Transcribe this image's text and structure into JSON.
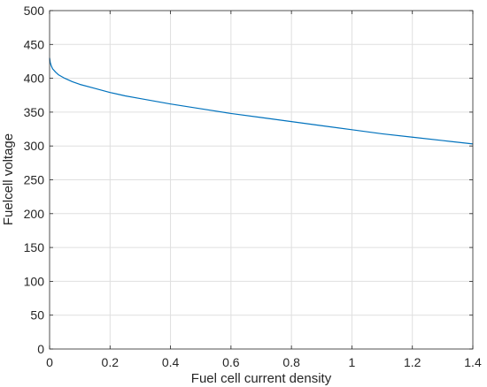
{
  "chart_data": {
    "type": "line",
    "title": "",
    "xlabel": "Fuel cell current density",
    "ylabel": "Fuelcell voltage",
    "xlim": [
      0,
      1.4
    ],
    "ylim": [
      0,
      500
    ],
    "xticks": [
      "0",
      "0.2",
      "0.4",
      "0.6",
      "0.8",
      "1",
      "1.2",
      "1.4"
    ],
    "xtick_values": [
      0,
      0.2,
      0.4,
      0.6,
      0.8,
      1,
      1.2,
      1.4
    ],
    "yticks": [
      "0",
      "50",
      "100",
      "150",
      "200",
      "250",
      "300",
      "350",
      "400",
      "450",
      "500"
    ],
    "ytick_values": [
      0,
      50,
      100,
      150,
      200,
      250,
      300,
      350,
      400,
      450,
      500
    ],
    "grid": true,
    "legend": "none",
    "series": [
      {
        "color": "#0072BD",
        "x": [
          0.0,
          0.002,
          0.005,
          0.01,
          0.02,
          0.03,
          0.05,
          0.075,
          0.1,
          0.15,
          0.2,
          0.25,
          0.3,
          0.4,
          0.5,
          0.6,
          0.7,
          0.8,
          0.9,
          1.0,
          1.1,
          1.2,
          1.3,
          1.4
        ],
        "y": [
          430,
          424,
          419,
          414,
          409,
          405,
          400,
          395,
          391,
          385,
          379,
          374,
          370,
          362,
          355,
          348,
          342,
          336,
          330,
          324,
          318,
          313,
          308,
          303
        ]
      }
    ]
  }
}
